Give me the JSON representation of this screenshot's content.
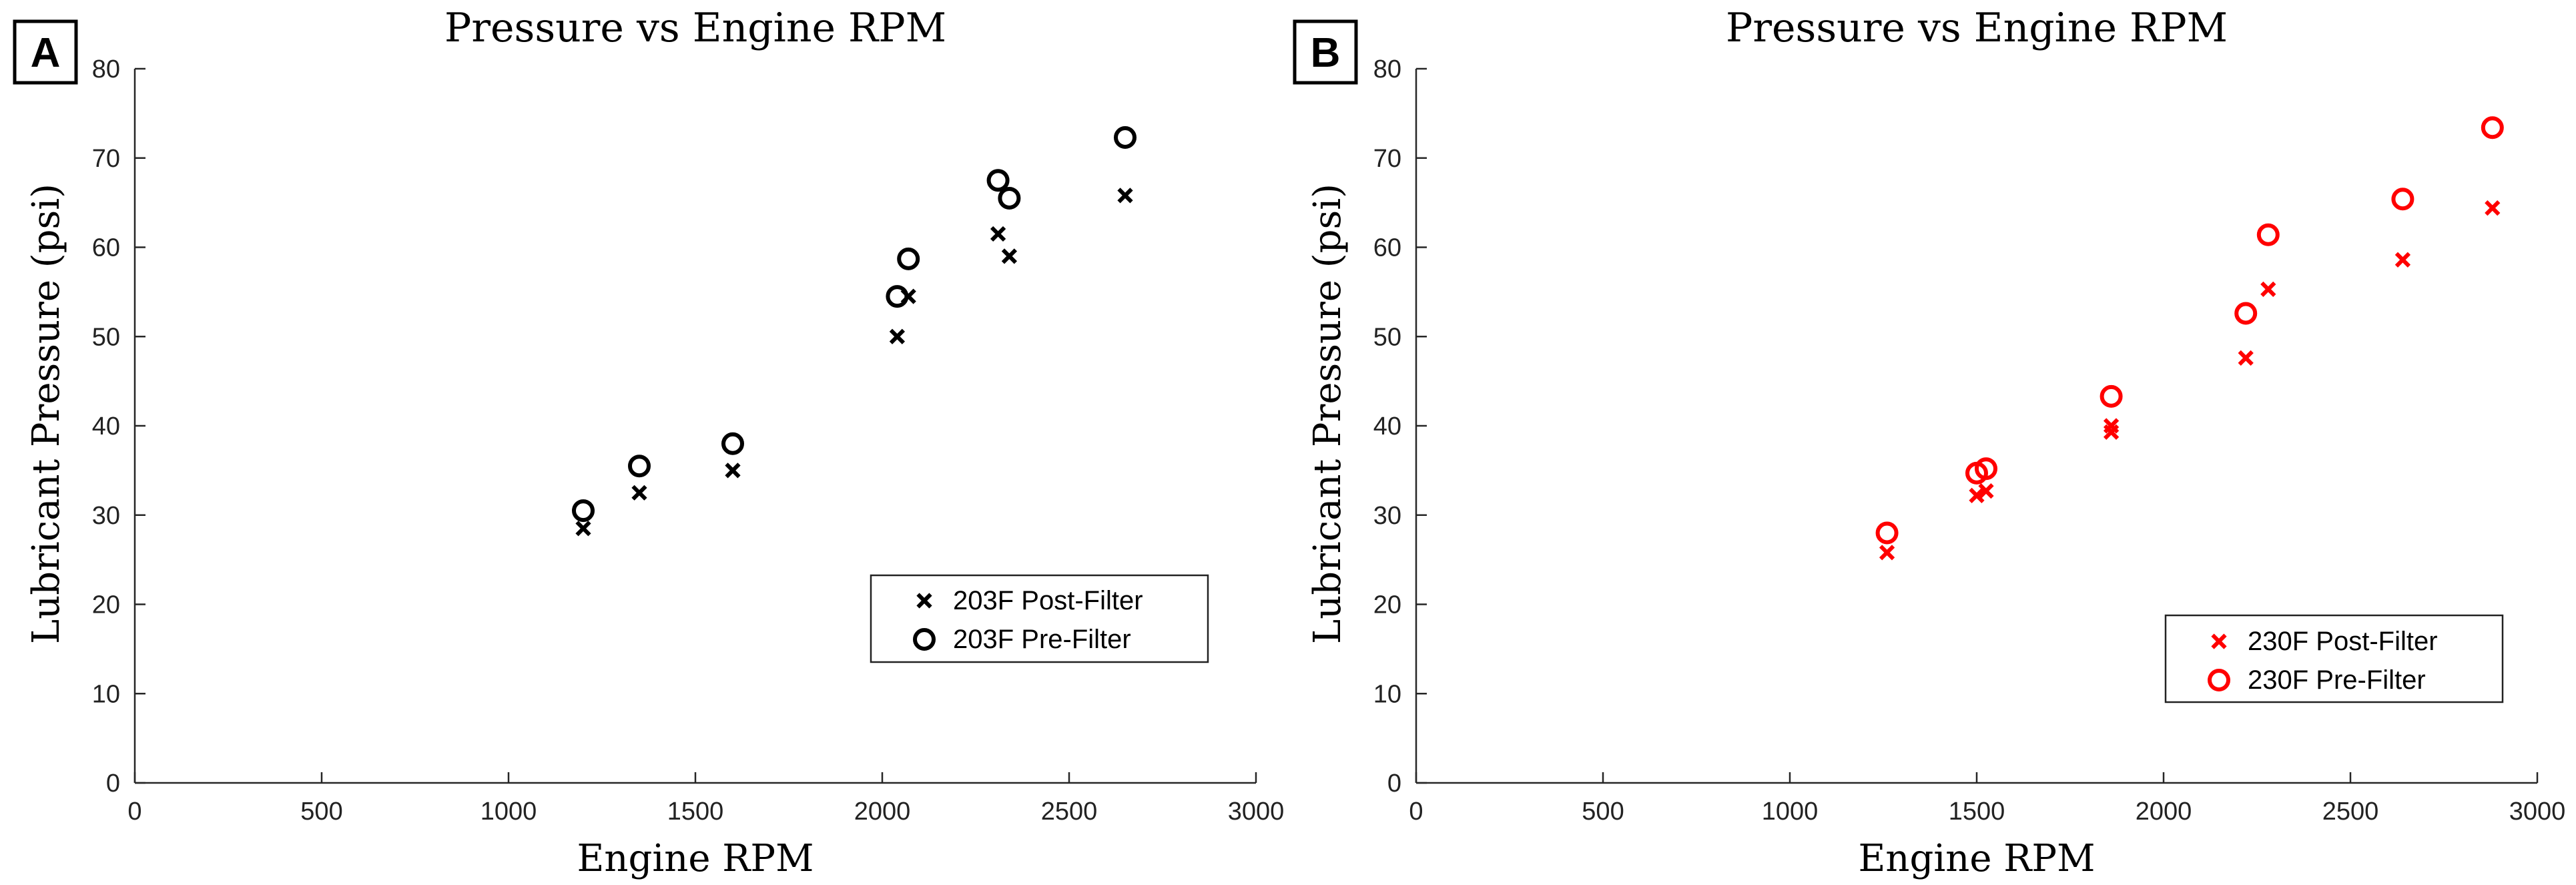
{
  "chart_data": [
    {
      "type": "scatter",
      "panel_tag": "A",
      "title": "Pressure vs Engine RPM",
      "xlabel": "Engine RPM",
      "ylabel": "Lubricant Pressure (psi)",
      "xlim": [
        0,
        3000
      ],
      "ylim": [
        0,
        80
      ],
      "xticks": [
        0,
        500,
        1000,
        1500,
        2000,
        2500,
        3000
      ],
      "yticks": [
        0,
        10,
        20,
        30,
        40,
        50,
        60,
        70,
        80
      ],
      "grid": false,
      "legend_position": "lower-right",
      "color": "#000000",
      "series": [
        {
          "name": "203F Post-Filter",
          "marker": "x",
          "points": [
            {
              "x": 1200,
              "y": 28.5
            },
            {
              "x": 1350,
              "y": 32.5
            },
            {
              "x": 1600,
              "y": 35
            },
            {
              "x": 2040,
              "y": 50
            },
            {
              "x": 2070,
              "y": 54.5
            },
            {
              "x": 2310,
              "y": 61.5
            },
            {
              "x": 2340,
              "y": 59
            },
            {
              "x": 2650,
              "y": 65.8
            }
          ]
        },
        {
          "name": "203F Pre-Filter",
          "marker": "circle",
          "points": [
            {
              "x": 1200,
              "y": 30.5
            },
            {
              "x": 1350,
              "y": 35.5
            },
            {
              "x": 1600,
              "y": 38
            },
            {
              "x": 2040,
              "y": 54.5
            },
            {
              "x": 2070,
              "y": 58.7
            },
            {
              "x": 2310,
              "y": 67.5
            },
            {
              "x": 2340,
              "y": 65.5
            },
            {
              "x": 2650,
              "y": 72.3
            }
          ]
        }
      ]
    },
    {
      "type": "scatter",
      "panel_tag": "B",
      "title": "Pressure vs Engine RPM",
      "xlabel": "Engine RPM",
      "ylabel": "Lubricant Pressure (psi)",
      "xlim": [
        0,
        3000
      ],
      "ylim": [
        0,
        80
      ],
      "xticks": [
        0,
        500,
        1000,
        1500,
        2000,
        2500,
        3000
      ],
      "yticks": [
        0,
        10,
        20,
        30,
        40,
        50,
        60,
        70,
        80
      ],
      "grid": false,
      "legend_position": "lower-right",
      "color": "#ff0000",
      "series": [
        {
          "name": "230F Post-Filter",
          "marker": "x",
          "points": [
            {
              "x": 1260,
              "y": 25.8
            },
            {
              "x": 1500,
              "y": 32.2
            },
            {
              "x": 1525,
              "y": 32.7
            },
            {
              "x": 1860,
              "y": 39.3
            },
            {
              "x": 1860,
              "y": 40
            },
            {
              "x": 2220,
              "y": 47.6
            },
            {
              "x": 2280,
              "y": 55.3
            },
            {
              "x": 2640,
              "y": 58.6
            },
            {
              "x": 2880,
              "y": 64.4
            }
          ]
        },
        {
          "name": "230F Pre-Filter",
          "marker": "circle",
          "points": [
            {
              "x": 1260,
              "y": 28
            },
            {
              "x": 1500,
              "y": 34.7
            },
            {
              "x": 1525,
              "y": 35.2
            },
            {
              "x": 1860,
              "y": 43.3
            },
            {
              "x": 2220,
              "y": 52.6
            },
            {
              "x": 2280,
              "y": 61.4
            },
            {
              "x": 2640,
              "y": 65.4
            },
            {
              "x": 2880,
              "y": 73.4
            }
          ]
        }
      ]
    }
  ]
}
